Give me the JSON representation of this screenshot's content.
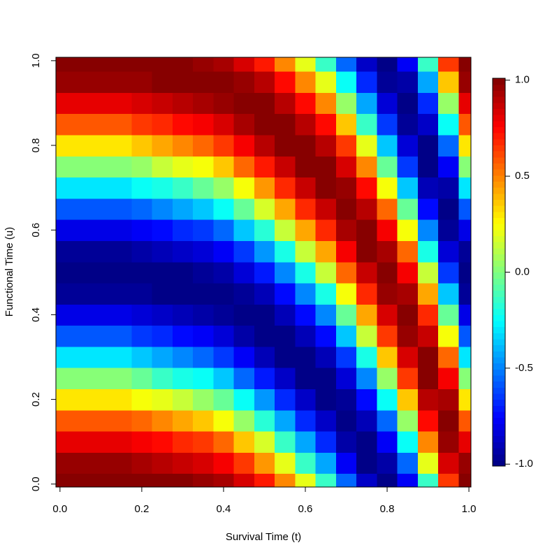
{
  "chart_data": {
    "type": "heatmap",
    "x_label": "Survival Time (t)",
    "y_label": "Functional Time (u)",
    "x": [
      0,
      0.05,
      0.1,
      0.15,
      0.2,
      0.25,
      0.3,
      0.35,
      0.4,
      0.45,
      0.5,
      0.55,
      0.6,
      0.65,
      0.7,
      0.75,
      0.8,
      0.85,
      0.9,
      0.95,
      1
    ],
    "y": [
      0,
      0.05,
      0.1,
      0.15,
      0.2,
      0.25,
      0.3,
      0.35,
      0.4,
      0.45,
      0.5,
      0.55,
      0.6,
      0.65,
      0.7,
      0.75,
      0.8,
      0.85,
      0.9,
      0.95,
      1
    ],
    "z": [
      [
        1,
        0.95,
        0.81,
        0.59,
        0.31,
        0,
        -0.31,
        -0.59,
        -0.81,
        -0.95,
        -1,
        -0.95,
        -0.81,
        -0.59,
        -0.31,
        0,
        0.31,
        0.59,
        0.81,
        0.95,
        1
      ],
      [
        1,
        0.95,
        0.81,
        0.59,
        0.31,
        0,
        -0.31,
        -0.59,
        -0.81,
        -0.95,
        -1,
        -0.95,
        -0.81,
        -0.59,
        -0.31,
        0,
        0.31,
        0.59,
        0.81,
        0.95,
        1
      ],
      [
        1,
        0.95,
        0.81,
        0.59,
        0.31,
        0,
        -0.31,
        -0.59,
        -0.81,
        -0.95,
        -1,
        -0.95,
        -0.81,
        -0.59,
        -0.31,
        0,
        0.31,
        0.59,
        0.81,
        0.95,
        1
      ],
      [
        1,
        0.95,
        0.81,
        0.59,
        0.31,
        0,
        -0.31,
        -0.59,
        -0.81,
        -0.95,
        -1,
        -0.95,
        -0.81,
        -0.59,
        -0.31,
        0,
        0.31,
        0.59,
        0.81,
        0.95,
        1
      ],
      [
        1,
        0.93,
        0.77,
        0.54,
        0.25,
        -0.06,
        -0.37,
        -0.64,
        -0.84,
        -0.97,
        -1,
        -0.93,
        -0.77,
        -0.54,
        -0.25,
        0.06,
        0.37,
        0.64,
        0.84,
        0.97,
        1
      ],
      [
        0.99,
        0.91,
        0.73,
        0.48,
        0.19,
        -0.13,
        -0.43,
        -0.69,
        -0.88,
        -0.98,
        -0.99,
        -0.91,
        -0.73,
        -0.48,
        -0.19,
        0.13,
        0.43,
        0.69,
        0.88,
        0.98,
        0.99
      ],
      [
        0.98,
        0.88,
        0.69,
        0.43,
        0.13,
        -0.19,
        -0.48,
        -0.73,
        -0.91,
        -0.99,
        -0.98,
        -0.88,
        -0.69,
        -0.43,
        -0.13,
        0.19,
        0.48,
        0.73,
        0.91,
        0.99,
        0.98
      ],
      [
        0.97,
        0.84,
        0.64,
        0.37,
        0.06,
        -0.25,
        -0.54,
        -0.77,
        -0.93,
        -1,
        -0.97,
        -0.84,
        -0.64,
        -0.37,
        -0.06,
        0.25,
        0.54,
        0.77,
        0.93,
        1,
        0.97
      ],
      [
        0.93,
        0.77,
        0.54,
        0.25,
        -0.06,
        -0.37,
        -0.64,
        -0.84,
        -0.97,
        -1,
        -0.93,
        -0.77,
        -0.54,
        -0.25,
        0.06,
        0.37,
        0.64,
        0.84,
        0.97,
        1,
        0.93
      ],
      [
        0.84,
        0.64,
        0.37,
        0.06,
        -0.25,
        -0.54,
        -0.77,
        -0.93,
        -1,
        -0.97,
        -0.84,
        -0.64,
        -0.37,
        -0.06,
        0.25,
        0.54,
        0.77,
        0.93,
        1,
        0.97,
        0.84
      ],
      [
        0.71,
        0.45,
        0.16,
        -0.16,
        -0.45,
        -0.71,
        -0.89,
        -0.99,
        -0.99,
        -0.89,
        -0.71,
        -0.45,
        -0.16,
        0.16,
        0.45,
        0.71,
        0.89,
        0.99,
        0.99,
        0.89,
        0.71
      ],
      [
        0.48,
        0.19,
        -0.13,
        -0.43,
        -0.69,
        -0.88,
        -0.98,
        -0.99,
        -0.91,
        -0.73,
        -0.48,
        -0.19,
        0.13,
        0.43,
        0.69,
        0.88,
        0.98,
        0.99,
        0.91,
        0.73,
        0.48
      ],
      [
        0.19,
        -0.13,
        -0.43,
        -0.69,
        -0.88,
        -0.98,
        -0.99,
        -0.91,
        -0.73,
        -0.48,
        -0.19,
        0.13,
        0.43,
        0.69,
        0.88,
        0.98,
        0.99,
        0.91,
        0.73,
        0.48,
        0.19
      ],
      [
        -0.13,
        -0.43,
        -0.69,
        -0.88,
        -0.98,
        -0.99,
        -0.91,
        -0.73,
        -0.48,
        -0.19,
        0.13,
        0.43,
        0.69,
        0.88,
        0.98,
        0.99,
        0.91,
        0.73,
        0.48,
        0.19,
        -0.13
      ],
      [
        -0.54,
        -0.77,
        -0.93,
        -1,
        -0.97,
        -0.84,
        -0.64,
        -0.37,
        -0.06,
        0.25,
        0.54,
        0.77,
        0.93,
        1,
        0.97,
        0.84,
        0.64,
        0.37,
        0.06,
        -0.25,
        -0.54
      ],
      [
        -0.88,
        -0.98,
        -0.99,
        -0.91,
        -0.73,
        -0.48,
        -0.19,
        0.13,
        0.43,
        0.69,
        0.88,
        0.98,
        0.99,
        0.91,
        0.73,
        0.48,
        0.19,
        -0.13,
        -0.43,
        -0.69,
        -0.88
      ],
      [
        -1,
        -0.93,
        -0.77,
        -0.54,
        -0.25,
        0.06,
        0.37,
        0.64,
        0.84,
        0.97,
        1,
        0.93,
        0.77,
        0.54,
        0.25,
        -0.06,
        -0.37,
        -0.64,
        -0.84,
        -0.97,
        -1
      ],
      [
        -0.77,
        -0.54,
        -0.25,
        0.06,
        0.37,
        0.64,
        0.84,
        0.97,
        1,
        0.93,
        0.77,
        0.54,
        0.25,
        -0.06,
        -0.37,
        -0.64,
        -0.84,
        -0.97,
        -1,
        -0.93,
        -0.77
      ],
      [
        -0.13,
        0.19,
        0.48,
        0.73,
        0.91,
        0.99,
        0.98,
        0.88,
        0.69,
        0.43,
        0.13,
        -0.19,
        -0.48,
        -0.73,
        -0.91,
        -0.99,
        -0.98,
        -0.88,
        -0.69,
        -0.43,
        -0.13
      ],
      [
        0.64,
        0.84,
        0.97,
        1,
        0.93,
        0.77,
        0.54,
        0.25,
        -0.06,
        -0.37,
        -0.64,
        -0.84,
        -0.97,
        -1,
        -0.93,
        -0.77,
        -0.54,
        -0.25,
        0.06,
        0.37,
        0.64
      ],
      [
        1,
        0.95,
        0.81,
        0.59,
        0.31,
        0,
        -0.31,
        -0.59,
        -0.81,
        -0.95,
        -1,
        -0.95,
        -0.81,
        -0.59,
        -0.31,
        0,
        0.31,
        0.59,
        0.81,
        0.95,
        1
      ]
    ],
    "xlim": [
      -0.01,
      1.005
    ],
    "ylim": [
      -0.007,
      1.008
    ],
    "xticks": [
      {
        "value": 0,
        "label": "0.0"
      },
      0.2,
      0.4,
      0.6,
      0.8,
      {
        "value": 1,
        "label": "1.0"
      }
    ],
    "yticks": [
      {
        "value": 0,
        "label": "0.0"
      },
      0.2,
      0.4,
      0.6,
      0.8,
      {
        "value": 1,
        "label": "1.0"
      }
    ],
    "zlim": [
      -1.01,
      1.01
    ],
    "zticks": [
      {
        "value": 1,
        "label": "1.0"
      },
      0.5,
      {
        "value": 0,
        "label": "0.0"
      },
      -0.5,
      {
        "value": -1,
        "label": "-1.0"
      }
    ],
    "colors": [
      "#00007F",
      "#0000FF",
      "#007FFF",
      "#00FFFF",
      "#7FFF7F",
      "#FFFF00",
      "#FF7F00",
      "#FF0000",
      "#7F0000"
    ],
    "color_levels": 64
  }
}
